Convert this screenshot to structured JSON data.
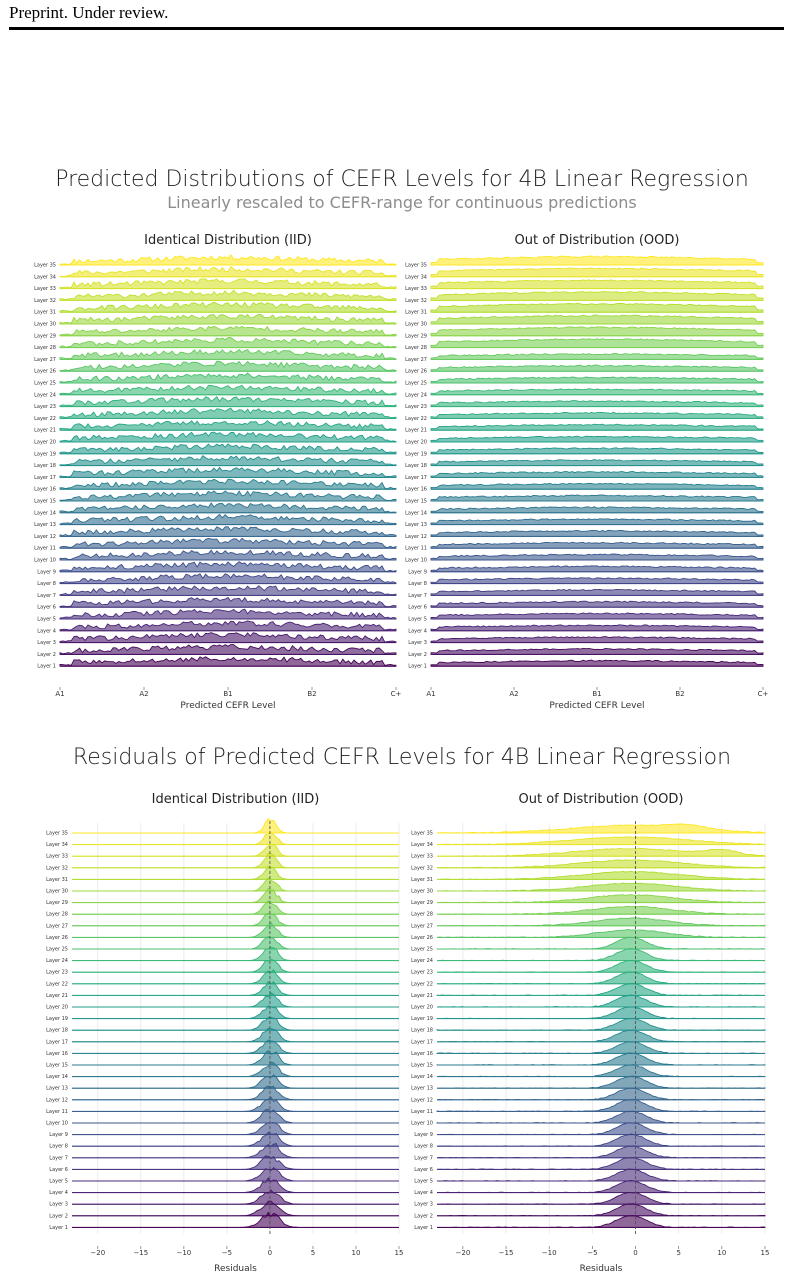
{
  "header": {
    "text": "Preprint. Under review."
  },
  "figures": [
    {
      "title": "Predicted Distributions of CEFR Levels for 4B Linear Regression",
      "subtitle": "Linearly rescaled to CEFR-range for continuous predictions"
    },
    {
      "title": "Residuals of Predicted CEFR Levels for 4B Linear Regression",
      "subtitle": ""
    }
  ],
  "chart_data": [
    {
      "type": "ridgeline",
      "title": "Identical Distribution (IID)",
      "xlabel": "Predicted CEFR Level",
      "xticks": [
        "A1",
        "A2",
        "B1",
        "B2",
        "C+"
      ],
      "xlim": [
        0,
        4
      ],
      "rows": [
        "Layer 35",
        "Layer 34",
        "Layer 33",
        "Layer 32",
        "Layer 31",
        "Layer 30",
        "Layer 29",
        "Layer 28",
        "Layer 27",
        "Layer 26",
        "Layer 25",
        "Layer 24",
        "Layer 23",
        "Layer 22",
        "Layer 21",
        "Layer 20",
        "Layer 19",
        "Layer 18",
        "Layer 17",
        "Layer 16",
        "Layer 15",
        "Layer 14",
        "Layer 13",
        "Layer 12",
        "Layer 11",
        "Layer 10",
        "Layer 9",
        "Layer 8",
        "Layer 7",
        "Layer 6",
        "Layer 5",
        "Layer 4",
        "Layer 3",
        "Layer 2",
        "Layer 1"
      ],
      "colormap": "viridis",
      "grid": false
    },
    {
      "type": "ridgeline",
      "title": "Out of Distribution (OOD)",
      "xlabel": "Predicted CEFR Level",
      "xticks": [
        "A1",
        "A2",
        "B1",
        "B2",
        "C+"
      ],
      "xlim": [
        0,
        4
      ],
      "rows": [
        "Layer 35",
        "Layer 34",
        "Layer 33",
        "Layer 32",
        "Layer 31",
        "Layer 30",
        "Layer 29",
        "Layer 28",
        "Layer 27",
        "Layer 26",
        "Layer 25",
        "Layer 24",
        "Layer 23",
        "Layer 22",
        "Layer 21",
        "Layer 20",
        "Layer 19",
        "Layer 18",
        "Layer 17",
        "Layer 16",
        "Layer 15",
        "Layer 14",
        "Layer 13",
        "Layer 12",
        "Layer 11",
        "Layer 10",
        "Layer 9",
        "Layer 8",
        "Layer 7",
        "Layer 6",
        "Layer 5",
        "Layer 4",
        "Layer 3",
        "Layer 2",
        "Layer 1"
      ],
      "colormap": "viridis",
      "grid": false
    },
    {
      "type": "ridgeline",
      "title": "Identical Distribution (IID)",
      "xlabel": "Residuals",
      "xticks": [
        -20,
        -15,
        -10,
        -5,
        0,
        5,
        10,
        15
      ],
      "xlim": [
        -23,
        15
      ],
      "reference_line": 0,
      "rows": [
        "Layer 35",
        "Layer 34",
        "Layer 33",
        "Layer 32",
        "Layer 31",
        "Layer 30",
        "Layer 29",
        "Layer 28",
        "Layer 27",
        "Layer 26",
        "Layer 25",
        "Layer 24",
        "Layer 23",
        "Layer 22",
        "Layer 21",
        "Layer 20",
        "Layer 19",
        "Layer 18",
        "Layer 17",
        "Layer 16",
        "Layer 15",
        "Layer 14",
        "Layer 13",
        "Layer 12",
        "Layer 11",
        "Layer 10",
        "Layer 9",
        "Layer 8",
        "Layer 7",
        "Layer 6",
        "Layer 5",
        "Layer 4",
        "Layer 3",
        "Layer 2",
        "Layer 1"
      ],
      "colormap": "viridis",
      "grid": true
    },
    {
      "type": "ridgeline",
      "title": "Out of Distribution (OOD)",
      "xlabel": "Residuals",
      "xticks": [
        -20,
        -15,
        -10,
        -5,
        0,
        5,
        10,
        15
      ],
      "xlim": [
        -23,
        15
      ],
      "reference_line": 0,
      "rows": [
        "Layer 35",
        "Layer 34",
        "Layer 33",
        "Layer 32",
        "Layer 31",
        "Layer 30",
        "Layer 29",
        "Layer 28",
        "Layer 27",
        "Layer 26",
        "Layer 25",
        "Layer 24",
        "Layer 23",
        "Layer 22",
        "Layer 21",
        "Layer 20",
        "Layer 19",
        "Layer 18",
        "Layer 17",
        "Layer 16",
        "Layer 15",
        "Layer 14",
        "Layer 13",
        "Layer 12",
        "Layer 11",
        "Layer 10",
        "Layer 9",
        "Layer 8",
        "Layer 7",
        "Layer 6",
        "Layer 5",
        "Layer 4",
        "Layer 3",
        "Layer 2",
        "Layer 1"
      ],
      "colormap": "viridis",
      "grid": true
    }
  ]
}
